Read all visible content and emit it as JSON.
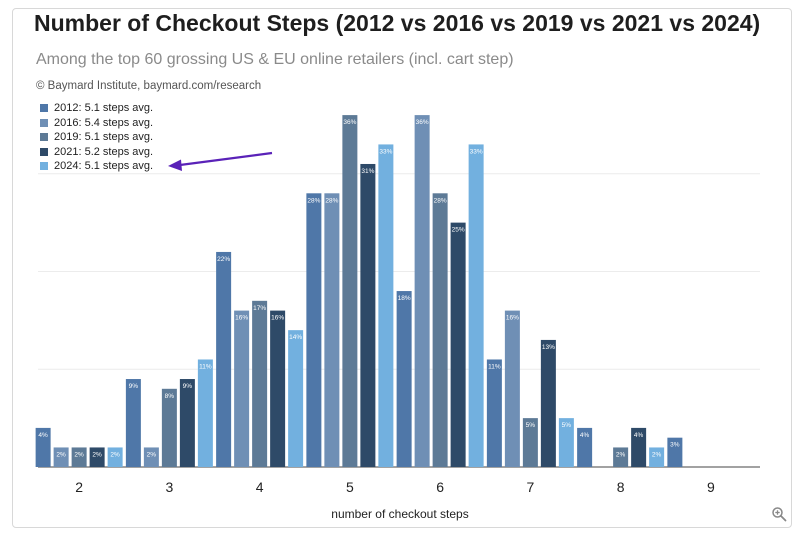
{
  "title": "Number of Checkout Steps (2012 vs 2016 vs 2019 vs 2021 vs 2024)",
  "subtitle": "Among the top 60 grossing US & EU online retailers (incl. cart step)",
  "source": "© Baymard Institute, baymard.com/research",
  "icons": {
    "zoom": "zoom-in-icon",
    "arrow": "arrow-pointer-icon"
  },
  "colors": {
    "arrow": "#5a22b8",
    "series": [
      "#4f77a8",
      "#6f8fb5",
      "#5d7a96",
      "#2e4a68",
      "#72b0df"
    ]
  },
  "chart_data": {
    "type": "bar",
    "title": "Number of Checkout Steps (2012 vs 2016 vs 2019 vs 2021 vs 2024)",
    "subtitle": "Among the top 60 grossing US & EU online retailers (incl. cart step)",
    "xlabel": "number of checkout steps",
    "ylabel": "",
    "ylim": [
      0,
      40
    ],
    "grid": true,
    "legend_position": "top-left",
    "categories": [
      "2",
      "3",
      "4",
      "5",
      "6",
      "7",
      "8",
      "9"
    ],
    "series": [
      {
        "name": "2012: 5.1 steps avg.",
        "values": [
          4,
          9,
          22,
          28,
          18,
          11,
          4,
          3
        ],
        "labels": [
          "4%",
          "9%",
          "22%",
          "28%",
          "18%",
          "11%",
          "4%",
          "3%"
        ]
      },
      {
        "name": "2016: 5.4 steps avg.",
        "values": [
          2,
          2,
          16,
          28,
          36,
          16,
          0,
          0
        ],
        "labels": [
          "2%",
          "2%",
          "16%",
          "28%",
          "36%",
          "16%",
          "",
          ""
        ]
      },
      {
        "name": "2019: 5.1 steps avg.",
        "values": [
          2,
          8,
          17,
          36,
          28,
          5,
          2,
          0
        ],
        "labels": [
          "2%",
          "8%",
          "17%",
          "36%",
          "28%",
          "5%",
          "2%",
          ""
        ]
      },
      {
        "name": "2021: 5.2 steps avg.",
        "values": [
          2,
          9,
          16,
          31,
          25,
          13,
          4,
          0
        ],
        "labels": [
          "2%",
          "9%",
          "16%",
          "31%",
          "25%",
          "13%",
          "4%",
          ""
        ]
      },
      {
        "name": "2024: 5.1 steps avg.",
        "values": [
          2,
          11,
          14,
          33,
          33,
          5,
          2,
          0
        ],
        "labels": [
          "2%",
          "11%",
          "14%",
          "33%",
          "33%",
          "5%",
          "2%",
          ""
        ]
      }
    ]
  }
}
